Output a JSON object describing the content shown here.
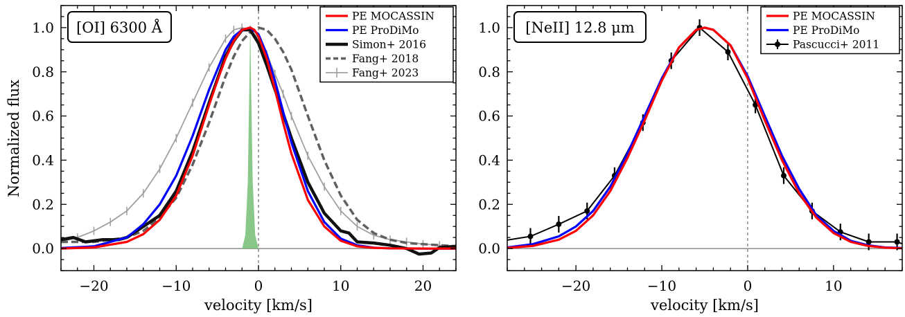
{
  "chart_data": [
    {
      "type": "line",
      "panel_label": "[OI] 6300 Å",
      "xlabel": "velocity [km/s]",
      "ylabel": "Normalized flux",
      "xlim": [
        -24,
        24
      ],
      "ylim": [
        -0.1,
        1.1
      ],
      "xticks": [
        -20,
        -10,
        0,
        10,
        20
      ],
      "yticks": [
        0.0,
        0.2,
        0.4,
        0.6,
        0.8,
        1.0
      ],
      "legend_position": "top-right",
      "series": [
        {
          "name": "PE MOCASSIN",
          "color": "#ff0000",
          "style": "solid",
          "x": [
            -24,
            -20,
            -16,
            -14,
            -12,
            -10,
            -8,
            -6,
            -5,
            -4,
            -3,
            -2,
            -1,
            -0.5,
            0,
            1,
            2,
            3,
            4,
            6,
            8,
            10,
            12,
            14,
            16,
            20,
            24
          ],
          "y": [
            0.0,
            0.005,
            0.03,
            0.065,
            0.13,
            0.24,
            0.42,
            0.65,
            0.76,
            0.86,
            0.94,
            0.99,
            1.0,
            0.99,
            0.96,
            0.86,
            0.72,
            0.57,
            0.43,
            0.22,
            0.1,
            0.035,
            0.01,
            0.003,
            0.001,
            0.0,
            0.0
          ]
        },
        {
          "name": "PE ProDiMo",
          "color": "#0000ff",
          "style": "solid",
          "x": [
            -24,
            -20,
            -16,
            -14,
            -12,
            -10,
            -8,
            -6,
            -4,
            -3,
            -2,
            -1,
            0,
            1,
            2,
            3,
            4,
            6,
            8,
            10,
            12,
            14,
            16,
            20,
            24
          ],
          "y": [
            0.002,
            0.01,
            0.05,
            0.11,
            0.2,
            0.33,
            0.51,
            0.72,
            0.9,
            0.96,
            0.99,
            1.0,
            0.97,
            0.88,
            0.76,
            0.62,
            0.48,
            0.26,
            0.12,
            0.045,
            0.015,
            0.004,
            0.001,
            0.0,
            0.0
          ]
        },
        {
          "name": "Simon+ 2016",
          "color": "#111111",
          "style": "thick",
          "x": [
            -24,
            -22.5,
            -21,
            -19,
            -17,
            -16,
            -14,
            -12,
            -10,
            -8,
            -6,
            -4,
            -3,
            -2,
            -1,
            0,
            1,
            2,
            4,
            6,
            8,
            10,
            11,
            12,
            14,
            16,
            18,
            19.5,
            21,
            22,
            24
          ],
          "y": [
            0.04,
            0.05,
            0.03,
            0.04,
            0.04,
            0.05,
            0.1,
            0.15,
            0.26,
            0.44,
            0.66,
            0.87,
            0.94,
            0.99,
            0.99,
            0.93,
            0.83,
            0.72,
            0.5,
            0.3,
            0.16,
            0.08,
            0.07,
            0.03,
            0.025,
            0.015,
            0.0,
            -0.025,
            -0.02,
            0.005,
            0.01
          ]
        },
        {
          "name": "Fang+ 2018",
          "color": "#606060",
          "style": "dashed",
          "x": [
            -24,
            -20,
            -16,
            -14,
            -12,
            -10,
            -8,
            -6,
            -4,
            -3,
            -2,
            -1,
            0,
            1,
            2,
            3,
            4,
            6,
            8,
            10,
            12,
            14,
            16,
            18,
            20,
            22,
            24
          ],
          "y": [
            0.03,
            0.03,
            0.05,
            0.08,
            0.14,
            0.23,
            0.38,
            0.57,
            0.78,
            0.87,
            0.94,
            0.98,
            1.0,
            0.99,
            0.95,
            0.89,
            0.81,
            0.6,
            0.4,
            0.24,
            0.13,
            0.07,
            0.04,
            0.025,
            0.02,
            0.015,
            0.01
          ]
        },
        {
          "name": "Fang+ 2023",
          "color": "#a0a0a0",
          "style": "errorbar",
          "x": [
            -24,
            -22,
            -20,
            -18,
            -16,
            -14,
            -12,
            -10,
            -8,
            -6,
            -4,
            -3,
            -2,
            -1,
            0,
            1,
            2,
            3,
            4,
            6,
            8,
            10,
            12,
            14,
            16,
            18,
            20,
            22,
            24
          ],
          "y": [
            0.03,
            0.05,
            0.08,
            0.12,
            0.17,
            0.25,
            0.36,
            0.5,
            0.66,
            0.82,
            0.95,
            0.99,
            1.0,
            0.99,
            0.95,
            0.88,
            0.79,
            0.7,
            0.6,
            0.42,
            0.28,
            0.17,
            0.1,
            0.06,
            0.04,
            0.03,
            0.02,
            0.015,
            0.01
          ]
        },
        {
          "name": "",
          "color": "#7cc27c",
          "style": "fill",
          "x": [
            -2.0,
            -1.6,
            -1.3,
            -1.1,
            -1.0,
            -0.9,
            -0.7,
            -0.4,
            0.0
          ],
          "y": [
            0.0,
            0.06,
            0.3,
            0.75,
            1.03,
            0.75,
            0.3,
            0.06,
            0.0
          ]
        }
      ]
    },
    {
      "type": "line",
      "panel_label": "[NeII] 12.8 μm",
      "xlabel": "velocity [km/s]",
      "ylabel": "",
      "xlim": [
        -28,
        18
      ],
      "ylim": [
        -0.1,
        1.1
      ],
      "xticks": [
        -20,
        -10,
        0,
        10
      ],
      "yticks": [
        0.0,
        0.2,
        0.4,
        0.6,
        0.8,
        1.0
      ],
      "legend_position": "top-right",
      "series": [
        {
          "name": "PE MOCASSIN",
          "color": "#ff0000",
          "style": "solid",
          "x": [
            -28,
            -25,
            -22,
            -20,
            -18,
            -16,
            -14,
            -12,
            -10,
            -8,
            -6,
            -5,
            -4,
            -2,
            0,
            2,
            4,
            6,
            8,
            10,
            12,
            14,
            16,
            18
          ],
          "y": [
            0.003,
            0.012,
            0.04,
            0.08,
            0.15,
            0.26,
            0.41,
            0.58,
            0.76,
            0.91,
            0.99,
            1.0,
            0.99,
            0.92,
            0.77,
            0.58,
            0.4,
            0.25,
            0.14,
            0.07,
            0.03,
            0.012,
            0.004,
            0.001
          ]
        },
        {
          "name": "PE ProDiMo",
          "color": "#0000ff",
          "style": "solid",
          "x": [
            -28,
            -25,
            -22,
            -20,
            -18,
            -16,
            -14,
            -12,
            -10,
            -8,
            -6,
            -5,
            -4,
            -2,
            0,
            2,
            4,
            6,
            8,
            10,
            12,
            14,
            16,
            18
          ],
          "y": [
            0.005,
            0.02,
            0.055,
            0.1,
            0.17,
            0.28,
            0.43,
            0.6,
            0.77,
            0.91,
            0.99,
            1.0,
            0.99,
            0.92,
            0.78,
            0.6,
            0.42,
            0.27,
            0.15,
            0.08,
            0.035,
            0.015,
            0.005,
            0.002
          ]
        },
        {
          "name": "Pascucci+ 2011",
          "color": "#000000",
          "style": "errorbar-markers",
          "x": [
            -28.5,
            -25.3,
            -22.0,
            -18.7,
            -15.5,
            -12.2,
            -8.9,
            -5.6,
            -2.3,
            0.9,
            4.2,
            7.5,
            10.8,
            14.1,
            17.4,
            19.5
          ],
          "y": [
            0.035,
            0.055,
            0.11,
            0.17,
            0.33,
            0.57,
            0.85,
            1.0,
            0.89,
            0.65,
            0.33,
            0.17,
            0.075,
            0.03,
            0.03,
            0.0
          ]
        }
      ]
    }
  ]
}
